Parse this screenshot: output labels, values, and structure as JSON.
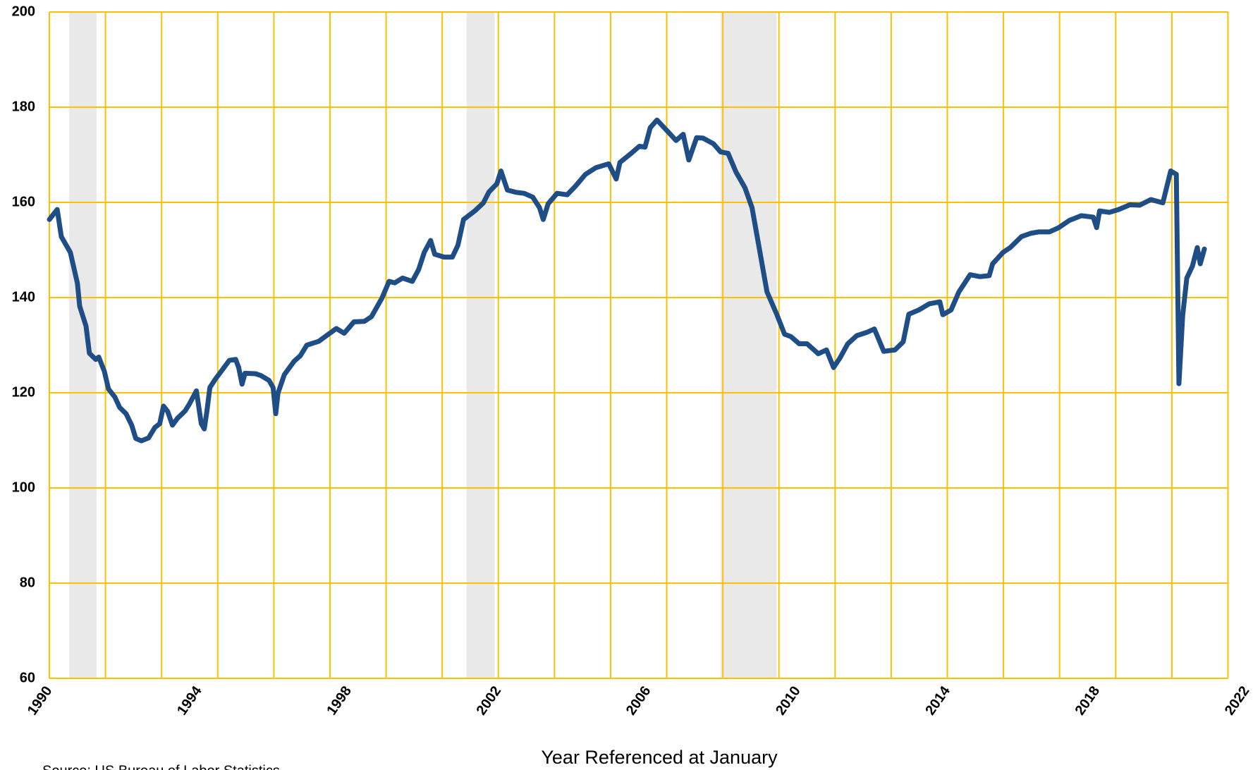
{
  "chart_data": {
    "type": "line",
    "xlabel": "Year Referenced at January",
    "source": "Source: US Bureau of Labor Statistics",
    "xlim": [
      1990,
      2022
    ],
    "xticks": [
      1990,
      1994,
      1998,
      2002,
      2006,
      2010,
      2014,
      2018,
      2022
    ],
    "xgrid": [
      1990,
      1991.5,
      1993,
      1994.5,
      1996,
      1997.5,
      1999,
      2000.5,
      2002,
      2003.5,
      2005,
      2006.5,
      2008,
      2009.5,
      2011,
      2012.5,
      2014,
      2015.5,
      2017,
      2018.5,
      2020,
      2021.5
    ],
    "ylim": [
      60,
      200
    ],
    "yticks": [
      60,
      80,
      100,
      120,
      140,
      160,
      180,
      200
    ],
    "grid": true,
    "grid_color": "#ffc000",
    "shaded_periods": [
      [
        1990.53,
        1991.26
      ],
      [
        2001.15,
        2001.9
      ],
      [
        2007.94,
        2009.44
      ]
    ],
    "shade_color": "#e9e9e9",
    "series": [
      {
        "color": "#1f4e87",
        "x": [
          1990.0,
          1990.21,
          1990.32,
          1990.56,
          1990.75,
          1990.81,
          1990.98,
          1991.07,
          1991.24,
          1991.32,
          1991.47,
          1991.58,
          1991.75,
          1991.88,
          1992.05,
          1992.2,
          1992.31,
          1992.46,
          1992.65,
          1992.82,
          1992.95,
          1993.05,
          1993.16,
          1993.29,
          1993.42,
          1993.63,
          1993.74,
          1993.93,
          1994.06,
          1994.14,
          1994.21,
          1994.29,
          1994.44,
          1994.64,
          1994.81,
          1994.98,
          1995.06,
          1995.15,
          1995.23,
          1995.51,
          1995.66,
          1995.87,
          1995.98,
          1996.05,
          1996.11,
          1996.28,
          1996.54,
          1996.71,
          1996.88,
          1997.2,
          1997.46,
          1997.67,
          1997.88,
          1998.14,
          1998.42,
          1998.61,
          1998.89,
          1999.08,
          1999.23,
          1999.44,
          1999.7,
          1999.87,
          2000.02,
          2000.19,
          2000.3,
          2000.55,
          2000.77,
          2000.92,
          2001.07,
          2001.37,
          2001.6,
          2001.75,
          2001.96,
          2002.07,
          2002.24,
          2002.48,
          2002.69,
          2002.92,
          2003.1,
          2003.2,
          2003.33,
          2003.57,
          2003.84,
          2004.06,
          2004.33,
          2004.61,
          2004.95,
          2005.15,
          2005.25,
          2005.55,
          2005.77,
          2005.92,
          2006.06,
          2006.24,
          2006.49,
          2006.75,
          2006.94,
          2007.09,
          2007.3,
          2007.47,
          2007.75,
          2007.94,
          2008.14,
          2008.35,
          2008.59,
          2008.78,
          2008.97,
          2009.18,
          2009.44,
          2009.65,
          2009.82,
          2010.04,
          2010.25,
          2010.55,
          2010.77,
          2010.96,
          2011.13,
          2011.34,
          2011.58,
          2011.85,
          2012.05,
          2012.3,
          2012.6,
          2012.82,
          2012.97,
          2013.24,
          2013.52,
          2013.8,
          2013.88,
          2014.1,
          2014.31,
          2014.61,
          2014.87,
          2015.12,
          2015.21,
          2015.49,
          2015.68,
          2015.98,
          2016.23,
          2016.45,
          2016.73,
          2016.98,
          2017.26,
          2017.58,
          2017.9,
          2017.99,
          2018.07,
          2018.33,
          2018.58,
          2018.88,
          2019.14,
          2019.44,
          2019.76,
          2019.97,
          2020.12,
          2020.19,
          2020.29,
          2020.4,
          2020.55,
          2020.68,
          2020.76,
          2020.87
        ],
        "values": [
          156.4,
          158.5,
          152.8,
          149.5,
          143,
          138.2,
          134,
          128.3,
          127,
          127.5,
          124.5,
          120.8,
          119.1,
          116.9,
          115.6,
          113.2,
          110.4,
          109.9,
          110.5,
          112.7,
          113.5,
          117.2,
          116.1,
          113.2,
          114.6,
          116.2,
          117.6,
          120.4,
          113.5,
          112.4,
          116.1,
          121.1,
          122.9,
          125,
          126.8,
          127,
          125.3,
          121.8,
          124.1,
          124,
          123.6,
          122.6,
          121.1,
          115.6,
          119.9,
          123.8,
          126.6,
          127.8,
          130,
          130.8,
          132.3,
          133.5,
          132.5,
          134.9,
          135,
          136,
          139.9,
          143.4,
          143.1,
          144.1,
          143.4,
          145.9,
          149.5,
          152,
          149.1,
          148.5,
          148.5,
          151,
          156.4,
          158.2,
          159.9,
          162.2,
          163.9,
          166.6,
          162.6,
          162.1,
          161.9,
          161.1,
          158.9,
          156.4,
          159.7,
          161.9,
          161.6,
          163.4,
          165.9,
          167.3,
          168.1,
          164.9,
          168.4,
          170.3,
          171.8,
          171.6,
          175.7,
          177.3,
          175.2,
          173,
          174.3,
          168.9,
          173.6,
          173.5,
          172.3,
          170.6,
          170.3,
          166.4,
          163.1,
          158.9,
          150.5,
          141.2,
          136.5,
          132.3,
          131.8,
          130.3,
          130.3,
          128.2,
          129,
          125.3,
          127.3,
          130.3,
          132,
          132.7,
          133.4,
          128.7,
          129,
          130.7,
          136.5,
          137.4,
          138.7,
          139.1,
          136.4,
          137.4,
          141.2,
          144.8,
          144.4,
          144.6,
          147.1,
          149.5,
          150.5,
          152.8,
          153.5,
          153.8,
          153.8,
          154.7,
          156.2,
          157.2,
          156.9,
          154.7,
          158.2,
          157.9,
          158.5,
          159.5,
          159.4,
          160.6,
          159.9,
          166.6,
          165.9,
          121.9,
          136.2,
          144.1,
          146.6,
          150.5,
          147.1,
          150.2
        ]
      }
    ]
  }
}
